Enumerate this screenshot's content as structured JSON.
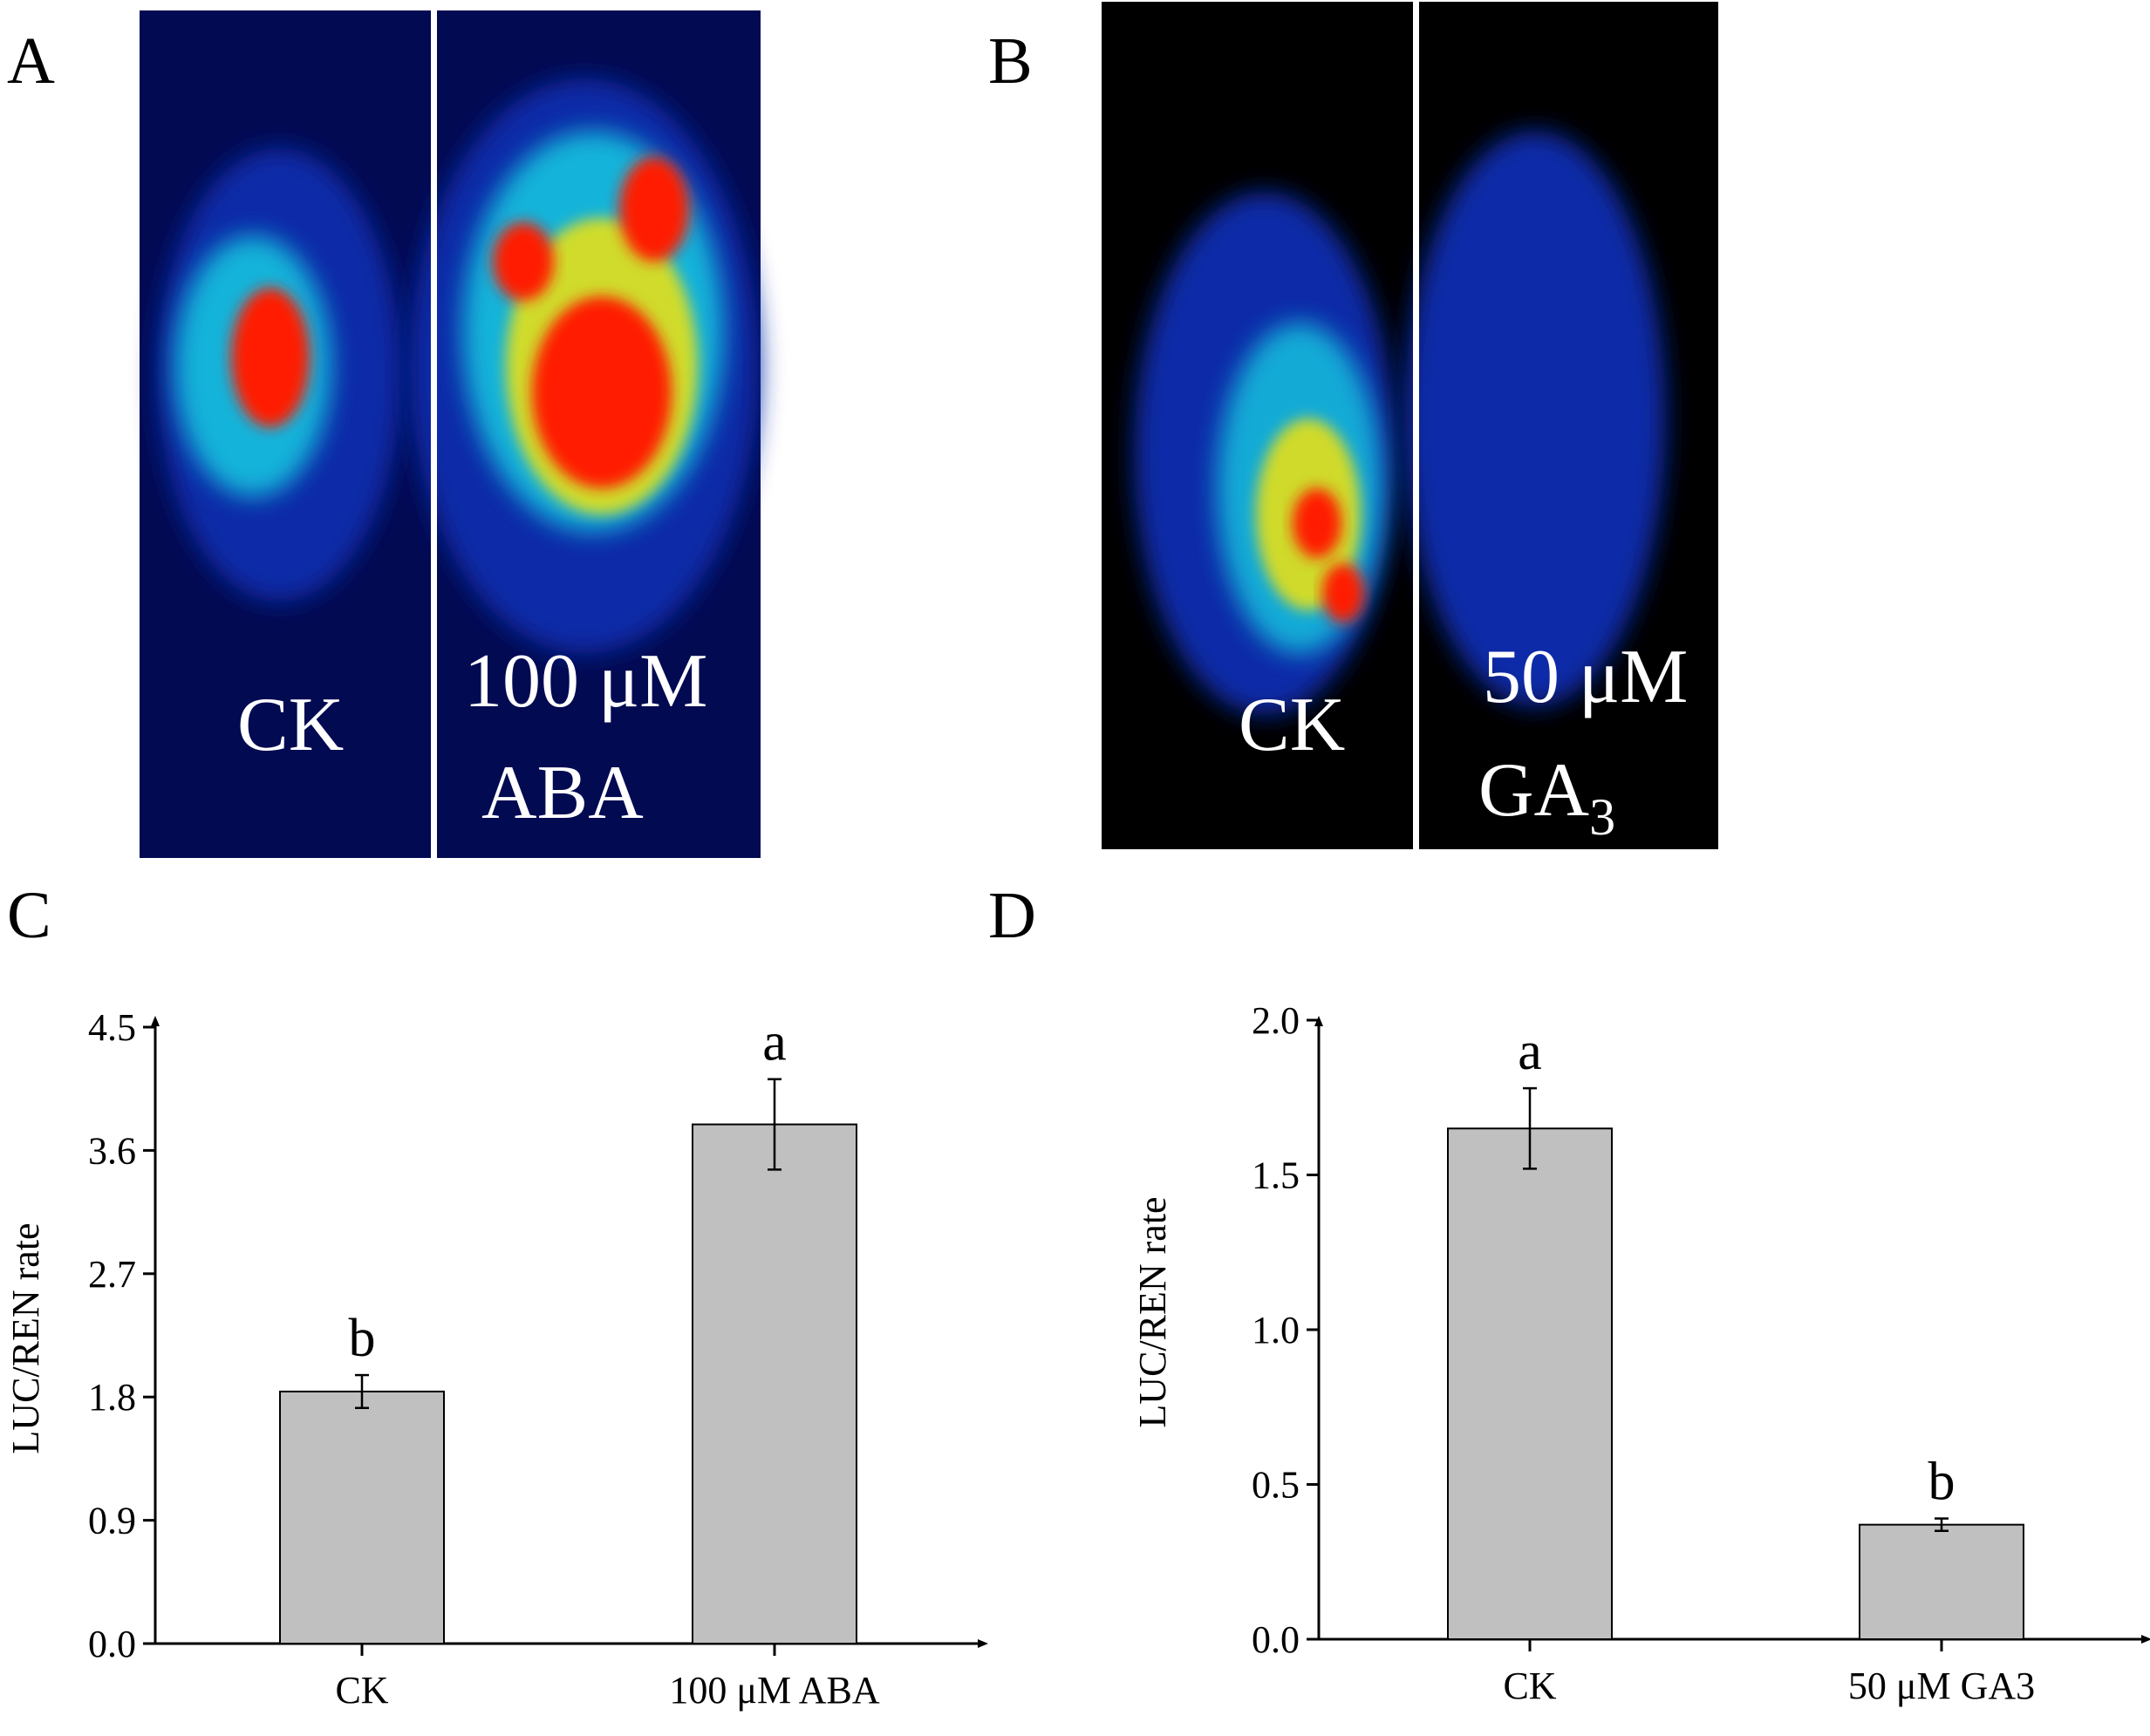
{
  "panels": {
    "a": {
      "label": "A",
      "left_label": "CK",
      "right_label_line1": "100 μM",
      "right_label_line2": "ABA"
    },
    "b": {
      "label": "B",
      "left_label": "CK",
      "right_label_line1": "50 μM",
      "right_label_line2_main": "GA",
      "right_label_line2_sub": "3"
    },
    "c": {
      "label": "C"
    },
    "d": {
      "label": "D"
    }
  },
  "colors": {
    "bar_fill": "#c0c0c0",
    "bar_stroke": "#000000",
    "luminescence_bg": "#020a52",
    "luminescence_dark_bg": "#000000",
    "heat_low": "#0a2aa8",
    "heat_mid": "#16d6e6",
    "heat_high": "#ff1a00"
  },
  "chart_data": [
    {
      "type": "bar",
      "panel": "C",
      "categories": [
        "CK",
        "100 μM ABA"
      ],
      "values": [
        1.84,
        3.79
      ],
      "errors": [
        0.12,
        0.33
      ],
      "significance": [
        "b",
        "a"
      ],
      "ylabel": "LUC/REN rate",
      "xlabel": "",
      "ylim": [
        0,
        4.5
      ],
      "yticks": [
        "0.0",
        "0.9",
        "1.8",
        "2.7",
        "3.6",
        "4.5"
      ]
    },
    {
      "type": "bar",
      "panel": "D",
      "categories": [
        "CK",
        "50 μM GA3"
      ],
      "values": [
        1.65,
        0.37
      ],
      "errors": [
        0.13,
        0.02
      ],
      "significance": [
        "a",
        "b"
      ],
      "ylabel": "LUC/REN rate",
      "xlabel": "",
      "ylim": [
        0,
        2.0
      ],
      "yticks": [
        "0.0",
        "0.5",
        "1.0",
        "1.5",
        "2.0"
      ]
    }
  ]
}
